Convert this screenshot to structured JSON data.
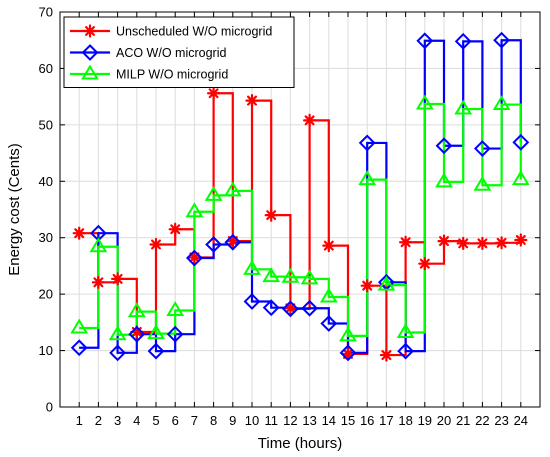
{
  "chart_data": {
    "type": "line",
    "step": "post",
    "xlabel": "Time (hours)",
    "ylabel": "Energy cost (Cents)",
    "x": [
      1,
      2,
      3,
      4,
      5,
      6,
      7,
      8,
      9,
      10,
      11,
      12,
      13,
      14,
      15,
      16,
      17,
      18,
      19,
      20,
      21,
      22,
      23,
      24
    ],
    "xlim": [
      0,
      25
    ],
    "ylim": [
      0,
      70
    ],
    "yticks": [
      0,
      10,
      20,
      30,
      40,
      50,
      60,
      70
    ],
    "grid": true,
    "legend_position": "top-left",
    "series": [
      {
        "name": "Unscheduled W/O microgrid",
        "color": "#ff0000",
        "marker": "star",
        "values": [
          30.8,
          22.1,
          22.7,
          13.3,
          28.8,
          31.5,
          26.5,
          55.6,
          29.4,
          54.3,
          34.0,
          17.5,
          50.8,
          28.6,
          9.4,
          21.5,
          9.2,
          29.2,
          25.4,
          29.4,
          29.0,
          29.0,
          29.1,
          29.6
        ]
      },
      {
        "name": "ACO W/O microgrid",
        "color": "#0000ff",
        "marker": "diamond",
        "values": [
          10.5,
          30.8,
          9.6,
          12.9,
          9.9,
          12.9,
          26.4,
          28.8,
          29.2,
          18.7,
          17.6,
          17.4,
          17.5,
          14.8,
          9.6,
          46.8,
          22.1,
          9.9,
          64.9,
          46.3,
          64.8,
          45.8,
          65.0,
          46.9
        ]
      },
      {
        "name": "MILP W/O microgrid",
        "color": "#00ff00",
        "marker": "triangle",
        "values": [
          14.0,
          28.4,
          12.8,
          16.9,
          13.0,
          17.1,
          34.6,
          37.5,
          38.3,
          24.4,
          23.1,
          23.0,
          22.7,
          19.5,
          12.6,
          40.3,
          21.6,
          13.2,
          53.7,
          39.9,
          52.8,
          39.3,
          53.6,
          40.3
        ]
      }
    ]
  }
}
